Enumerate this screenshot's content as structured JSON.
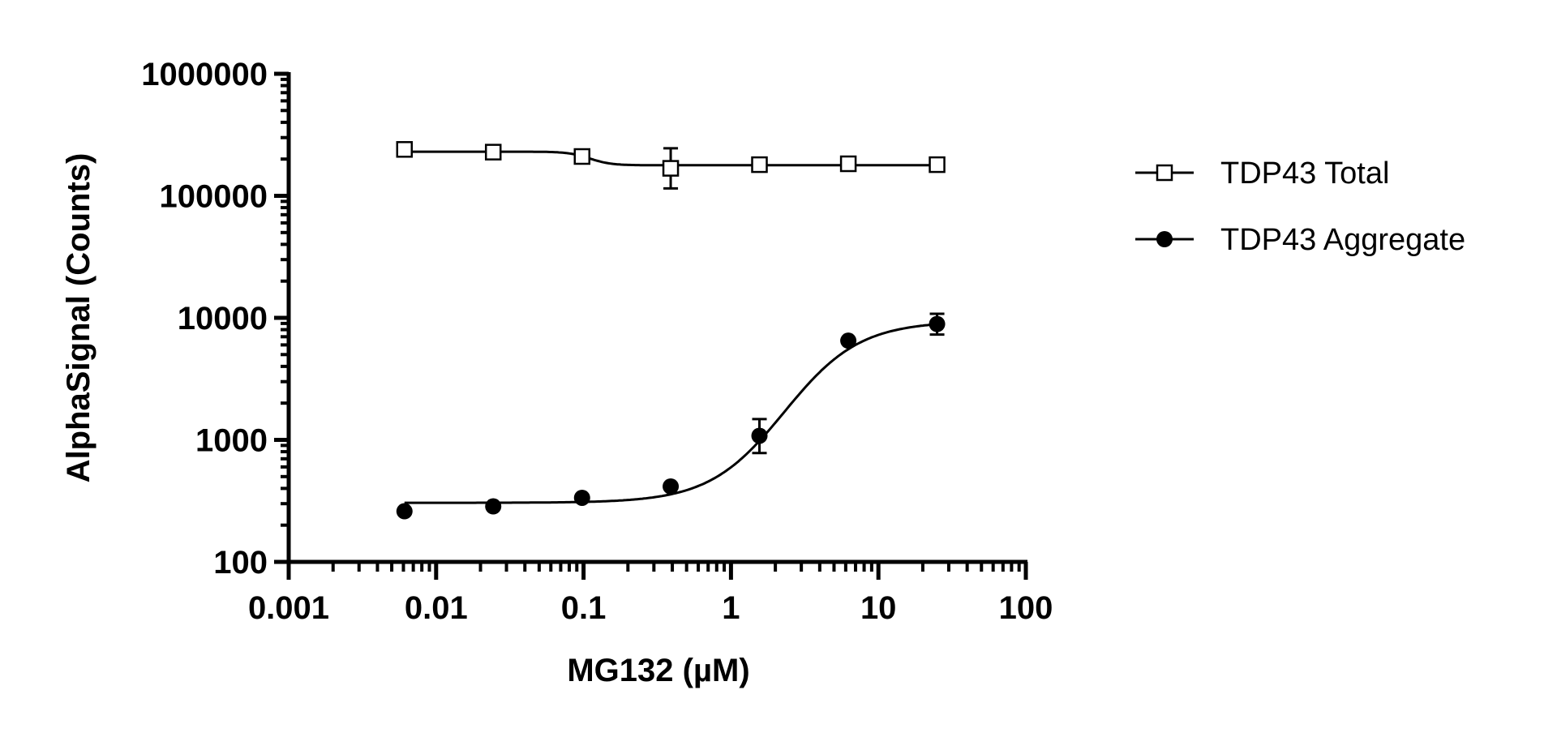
{
  "chart_data": {
    "type": "scatter",
    "xlabel": "MG132 (µM)",
    "ylabel": "AlphaSignal (Counts)",
    "xscale": "log",
    "yscale": "log",
    "xlim": [
      0.001,
      100
    ],
    "ylim": [
      100,
      1000000
    ],
    "xticks": [
      "0.001",
      "0.01",
      "0.1",
      "1",
      "10",
      "100"
    ],
    "yticks": [
      "100",
      "1000",
      "10000",
      "100000",
      "1000000"
    ],
    "legend_position": "right",
    "series": [
      {
        "name": "TDP43 Total",
        "marker": "open-square",
        "x": [
          0.0061,
          0.0244,
          0.0977,
          0.39,
          1.56,
          6.25,
          25
        ],
        "y": [
          240000,
          228000,
          210000,
          168000,
          180000,
          183000,
          180000
        ],
        "err_low": [
          null,
          null,
          null,
          115000,
          null,
          null,
          null
        ],
        "err_high": [
          null,
          null,
          null,
          245000,
          null,
          null,
          null
        ],
        "fit": {
          "bottom": 178000,
          "top": 230000,
          "ec50": 0.11,
          "hill": -6
        }
      },
      {
        "name": "TDP43 Aggregate",
        "marker": "filled-circle",
        "x": [
          0.0061,
          0.0244,
          0.0977,
          0.39,
          1.56,
          6.25,
          25
        ],
        "y": [
          260,
          285,
          335,
          415,
          1080,
          6500,
          8900
        ],
        "err_low": [
          null,
          null,
          null,
          null,
          780,
          null,
          7300
        ],
        "err_high": [
          null,
          null,
          null,
          null,
          1480,
          null,
          10800
        ],
        "fit": {
          "bottom": 305,
          "top": 9400,
          "ec50": 2.3,
          "hill": 1.7
        }
      }
    ]
  }
}
